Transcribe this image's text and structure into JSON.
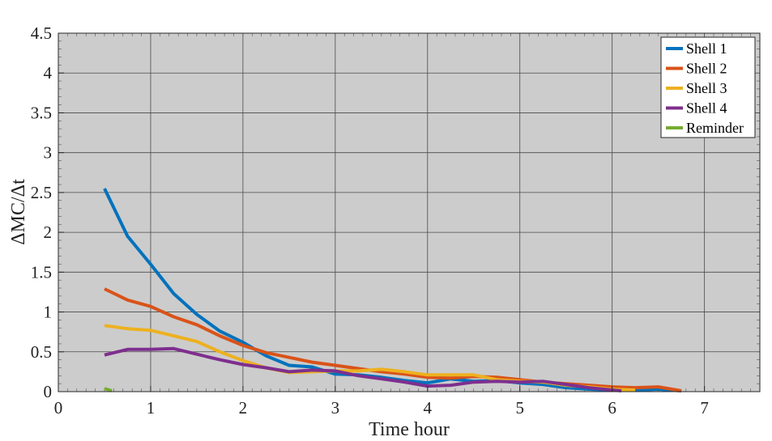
{
  "chart_data": {
    "type": "line",
    "title": "",
    "xlabel": "Time hour",
    "ylabel": "ΔMC/Δt",
    "xlim": [
      0,
      7.6
    ],
    "ylim": [
      0,
      4.5
    ],
    "xticks": [
      0,
      1,
      2,
      3,
      4,
      5,
      6,
      7
    ],
    "yticks": [
      0,
      0.5,
      1,
      1.5,
      2,
      2.5,
      3,
      3.5,
      4,
      4.5
    ],
    "xtick_labels": [
      "0",
      "1",
      "2",
      "3",
      "4",
      "5",
      "6",
      "7"
    ],
    "ytick_labels": [
      "0",
      "0.5",
      "1",
      "1.5",
      "2",
      "2.5",
      "3",
      "3.5",
      "4",
      "4.5"
    ],
    "grid": true,
    "background": "#cccccc",
    "legend_position": "top-right",
    "series": [
      {
        "name": "Shell 1",
        "color": "#0072bd",
        "x": [
          0.5,
          0.75,
          1.0,
          1.25,
          1.5,
          1.75,
          2.0,
          2.25,
          2.5,
          2.75,
          3.0,
          3.25,
          3.5,
          3.75,
          4.0,
          4.25,
          4.5,
          4.75,
          5.0,
          5.25,
          5.5,
          5.75,
          6.0,
          6.25,
          6.5,
          6.75
        ],
        "y": [
          2.55,
          1.95,
          1.6,
          1.23,
          0.97,
          0.76,
          0.62,
          0.45,
          0.33,
          0.31,
          0.22,
          0.21,
          0.18,
          0.14,
          0.11,
          0.16,
          0.13,
          0.14,
          0.11,
          0.09,
          0.05,
          0.03,
          0.02,
          0.02,
          0.03,
          0.01
        ]
      },
      {
        "name": "Shell 2",
        "color": "#d95319",
        "x": [
          0.5,
          0.75,
          1.0,
          1.25,
          1.5,
          1.75,
          2.0,
          2.25,
          2.5,
          2.75,
          3.0,
          3.25,
          3.5,
          3.75,
          4.0,
          4.25,
          4.5,
          4.75,
          5.0,
          5.25,
          5.5,
          5.75,
          6.0,
          6.25,
          6.5,
          6.75
        ],
        "y": [
          1.29,
          1.15,
          1.07,
          0.94,
          0.84,
          0.7,
          0.58,
          0.49,
          0.43,
          0.37,
          0.33,
          0.29,
          0.25,
          0.22,
          0.18,
          0.17,
          0.19,
          0.18,
          0.15,
          0.12,
          0.1,
          0.08,
          0.06,
          0.05,
          0.06,
          0.01
        ]
      },
      {
        "name": "Shell 3",
        "color": "#edb120",
        "x": [
          0.5,
          0.75,
          1.0,
          1.25,
          1.5,
          1.75,
          2.0,
          2.25,
          2.5,
          2.75,
          3.0,
          3.25,
          3.5,
          3.75,
          4.0,
          4.25,
          4.5,
          4.75,
          5.0,
          5.25,
          5.5,
          5.75,
          6.0,
          6.25
        ],
        "y": [
          0.83,
          0.79,
          0.77,
          0.7,
          0.63,
          0.5,
          0.39,
          0.3,
          0.24,
          0.25,
          0.26,
          0.26,
          0.28,
          0.25,
          0.21,
          0.21,
          0.21,
          0.15,
          0.13,
          0.12,
          0.08,
          0.06,
          0.03,
          0.02
        ]
      },
      {
        "name": "Shell 4",
        "color": "#7e2f8e",
        "x": [
          0.5,
          0.75,
          1.0,
          1.25,
          1.5,
          1.75,
          2.0,
          2.25,
          2.5,
          2.75,
          3.0,
          3.25,
          3.5,
          3.75,
          4.0,
          4.25,
          4.5,
          4.75,
          5.0,
          5.25,
          5.5,
          5.75,
          6.0,
          6.1
        ],
        "y": [
          0.46,
          0.53,
          0.53,
          0.54,
          0.47,
          0.4,
          0.34,
          0.3,
          0.25,
          0.27,
          0.26,
          0.2,
          0.16,
          0.12,
          0.07,
          0.08,
          0.12,
          0.13,
          0.12,
          0.13,
          0.09,
          0.05,
          0.02,
          0.01
        ]
      },
      {
        "name": "Reminder",
        "color": "#77ac30",
        "x": [
          0.5,
          0.58
        ],
        "y": [
          0.04,
          0.01
        ]
      }
    ]
  }
}
